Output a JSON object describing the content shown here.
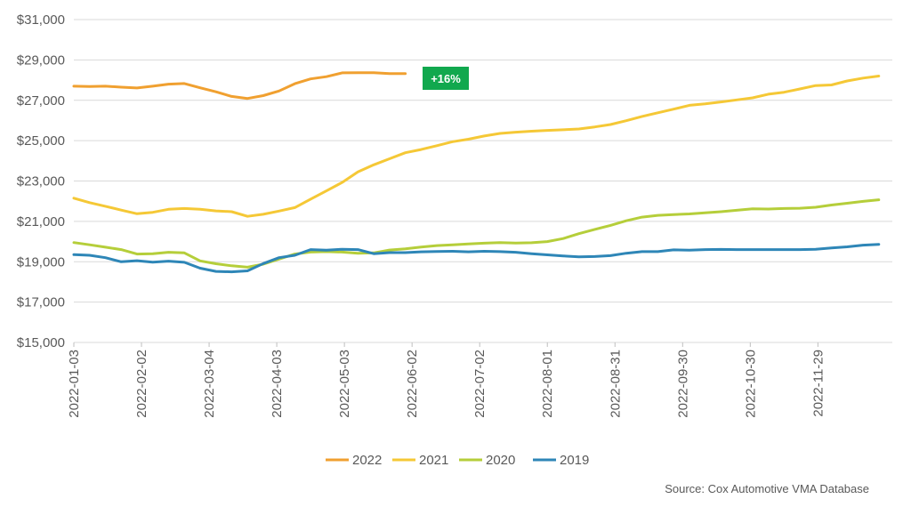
{
  "chart_data": {
    "type": "line",
    "ylim": [
      15000,
      31000
    ],
    "y_ticks": [
      {
        "value": 31000,
        "label": "$31,000"
      },
      {
        "value": 29000,
        "label": "$29,000"
      },
      {
        "value": 27000,
        "label": "$27,000"
      },
      {
        "value": 25000,
        "label": "$25,000"
      },
      {
        "value": 23000,
        "label": "$23,000"
      },
      {
        "value": 21000,
        "label": "$21,000"
      },
      {
        "value": 19000,
        "label": "$19,000"
      },
      {
        "value": 17000,
        "label": "$17,000"
      },
      {
        "value": 15000,
        "label": "$15,000"
      }
    ],
    "x_ticks": [
      "2022-01-03",
      "2022-02-02",
      "2022-03-04",
      "2022-04-03",
      "2022-05-03",
      "2022-06-02",
      "2022-07-02",
      "2022-08-01",
      "2022-08-31",
      "2022-09-30",
      "2022-10-30",
      "2022-11-29"
    ],
    "x_range": [
      "2022-01-03",
      "2023-01-01"
    ],
    "grid": "horizontal",
    "legend_position": "bottom",
    "series": [
      {
        "name": "2022",
        "color": "#F0A030",
        "points": [
          [
            "2022-01-03",
            27700
          ],
          [
            "2022-01-10",
            27680
          ],
          [
            "2022-01-17",
            27700
          ],
          [
            "2022-01-24",
            27650
          ],
          [
            "2022-01-31",
            27610
          ],
          [
            "2022-02-07",
            27700
          ],
          [
            "2022-02-14",
            27800
          ],
          [
            "2022-02-21",
            27830
          ],
          [
            "2022-02-28",
            27620
          ],
          [
            "2022-03-07",
            27420
          ],
          [
            "2022-03-14",
            27190
          ],
          [
            "2022-03-21",
            27090
          ],
          [
            "2022-03-28",
            27230
          ],
          [
            "2022-04-04",
            27460
          ],
          [
            "2022-04-11",
            27820
          ],
          [
            "2022-04-18",
            28060
          ],
          [
            "2022-04-25",
            28170
          ],
          [
            "2022-05-02",
            28360
          ],
          [
            "2022-05-09",
            28370
          ],
          [
            "2022-05-16",
            28370
          ],
          [
            "2022-05-23",
            28320
          ],
          [
            "2022-05-30",
            28320
          ]
        ]
      },
      {
        "name": "2021",
        "color": "#F5C836",
        "points": [
          [
            "2022-01-03",
            22150
          ],
          [
            "2022-01-10",
            21930
          ],
          [
            "2022-01-17",
            21750
          ],
          [
            "2022-01-24",
            21560
          ],
          [
            "2022-01-31",
            21380
          ],
          [
            "2022-02-07",
            21450
          ],
          [
            "2022-02-14",
            21600
          ],
          [
            "2022-02-21",
            21640
          ],
          [
            "2022-02-28",
            21600
          ],
          [
            "2022-03-07",
            21520
          ],
          [
            "2022-03-14",
            21480
          ],
          [
            "2022-03-21",
            21250
          ],
          [
            "2022-03-28",
            21350
          ],
          [
            "2022-04-04",
            21510
          ],
          [
            "2022-04-11",
            21680
          ],
          [
            "2022-04-18",
            22100
          ],
          [
            "2022-04-25",
            22510
          ],
          [
            "2022-05-02",
            22930
          ],
          [
            "2022-05-09",
            23450
          ],
          [
            "2022-05-16",
            23800
          ],
          [
            "2022-05-23",
            24100
          ],
          [
            "2022-05-30",
            24400
          ],
          [
            "2022-06-06",
            24560
          ],
          [
            "2022-06-13",
            24750
          ],
          [
            "2022-06-20",
            24950
          ],
          [
            "2022-06-27",
            25070
          ],
          [
            "2022-07-04",
            25230
          ],
          [
            "2022-07-11",
            25360
          ],
          [
            "2022-07-18",
            25420
          ],
          [
            "2022-07-25",
            25470
          ],
          [
            "2022-08-01",
            25510
          ],
          [
            "2022-08-08",
            25540
          ],
          [
            "2022-08-15",
            25580
          ],
          [
            "2022-08-22",
            25680
          ],
          [
            "2022-08-29",
            25800
          ],
          [
            "2022-09-05",
            25990
          ],
          [
            "2022-09-12",
            26200
          ],
          [
            "2022-09-19",
            26380
          ],
          [
            "2022-09-26",
            26560
          ],
          [
            "2022-10-03",
            26750
          ],
          [
            "2022-10-10",
            26820
          ],
          [
            "2022-10-17",
            26920
          ],
          [
            "2022-10-24",
            27020
          ],
          [
            "2022-10-31",
            27120
          ],
          [
            "2022-11-07",
            27300
          ],
          [
            "2022-11-14",
            27400
          ],
          [
            "2022-11-21",
            27560
          ],
          [
            "2022-11-28",
            27730
          ],
          [
            "2022-12-05",
            27760
          ],
          [
            "2022-12-12",
            27960
          ],
          [
            "2022-12-19",
            28100
          ],
          [
            "2022-12-26",
            28200
          ]
        ]
      },
      {
        "name": "2020",
        "color": "#B5CE3A",
        "points": [
          [
            "2022-01-03",
            19950
          ],
          [
            "2022-01-10",
            19840
          ],
          [
            "2022-01-17",
            19720
          ],
          [
            "2022-01-24",
            19600
          ],
          [
            "2022-01-31",
            19380
          ],
          [
            "2022-02-07",
            19400
          ],
          [
            "2022-02-14",
            19470
          ],
          [
            "2022-02-21",
            19440
          ],
          [
            "2022-02-28",
            19040
          ],
          [
            "2022-03-07",
            18900
          ],
          [
            "2022-03-14",
            18800
          ],
          [
            "2022-03-21",
            18730
          ],
          [
            "2022-03-28",
            18880
          ],
          [
            "2022-04-04",
            19130
          ],
          [
            "2022-04-11",
            19380
          ],
          [
            "2022-04-18",
            19480
          ],
          [
            "2022-04-25",
            19500
          ],
          [
            "2022-05-02",
            19480
          ],
          [
            "2022-05-09",
            19420
          ],
          [
            "2022-05-16",
            19440
          ],
          [
            "2022-05-23",
            19580
          ],
          [
            "2022-05-30",
            19640
          ],
          [
            "2022-06-06",
            19730
          ],
          [
            "2022-06-13",
            19800
          ],
          [
            "2022-06-20",
            19840
          ],
          [
            "2022-06-27",
            19880
          ],
          [
            "2022-07-04",
            19920
          ],
          [
            "2022-07-11",
            19950
          ],
          [
            "2022-07-18",
            19930
          ],
          [
            "2022-07-25",
            19940
          ],
          [
            "2022-08-01",
            20000
          ],
          [
            "2022-08-08",
            20150
          ],
          [
            "2022-08-15",
            20390
          ],
          [
            "2022-08-22",
            20600
          ],
          [
            "2022-08-29",
            20800
          ],
          [
            "2022-09-05",
            21030
          ],
          [
            "2022-09-12",
            21210
          ],
          [
            "2022-09-19",
            21300
          ],
          [
            "2022-09-26",
            21340
          ],
          [
            "2022-10-03",
            21370
          ],
          [
            "2022-10-10",
            21420
          ],
          [
            "2022-10-17",
            21480
          ],
          [
            "2022-10-24",
            21550
          ],
          [
            "2022-10-31",
            21620
          ],
          [
            "2022-11-07",
            21610
          ],
          [
            "2022-11-14",
            21640
          ],
          [
            "2022-11-21",
            21650
          ],
          [
            "2022-11-28",
            21700
          ],
          [
            "2022-12-05",
            21810
          ],
          [
            "2022-12-12",
            21900
          ],
          [
            "2022-12-19",
            21990
          ],
          [
            "2022-12-26",
            22070
          ]
        ]
      },
      {
        "name": "2019",
        "color": "#2E86B7",
        "points": [
          [
            "2022-01-03",
            19350
          ],
          [
            "2022-01-10",
            19320
          ],
          [
            "2022-01-17",
            19200
          ],
          [
            "2022-01-24",
            19000
          ],
          [
            "2022-01-31",
            19050
          ],
          [
            "2022-02-07",
            18980
          ],
          [
            "2022-02-14",
            19030
          ],
          [
            "2022-02-21",
            18970
          ],
          [
            "2022-02-28",
            18680
          ],
          [
            "2022-03-07",
            18520
          ],
          [
            "2022-03-14",
            18500
          ],
          [
            "2022-03-21",
            18550
          ],
          [
            "2022-03-28",
            18910
          ],
          [
            "2022-04-04",
            19200
          ],
          [
            "2022-04-11",
            19320
          ],
          [
            "2022-04-18",
            19600
          ],
          [
            "2022-04-25",
            19570
          ],
          [
            "2022-05-02",
            19620
          ],
          [
            "2022-05-09",
            19600
          ],
          [
            "2022-05-16",
            19400
          ],
          [
            "2022-05-23",
            19450
          ],
          [
            "2022-05-30",
            19450
          ],
          [
            "2022-06-06",
            19490
          ],
          [
            "2022-06-13",
            19510
          ],
          [
            "2022-06-20",
            19520
          ],
          [
            "2022-06-27",
            19490
          ],
          [
            "2022-07-04",
            19520
          ],
          [
            "2022-07-11",
            19500
          ],
          [
            "2022-07-18",
            19470
          ],
          [
            "2022-07-25",
            19400
          ],
          [
            "2022-08-01",
            19340
          ],
          [
            "2022-08-08",
            19290
          ],
          [
            "2022-08-15",
            19240
          ],
          [
            "2022-08-22",
            19260
          ],
          [
            "2022-08-29",
            19300
          ],
          [
            "2022-09-05",
            19420
          ],
          [
            "2022-09-12",
            19500
          ],
          [
            "2022-09-19",
            19500
          ],
          [
            "2022-09-26",
            19590
          ],
          [
            "2022-10-03",
            19570
          ],
          [
            "2022-10-10",
            19600
          ],
          [
            "2022-10-17",
            19610
          ],
          [
            "2022-10-24",
            19600
          ],
          [
            "2022-10-31",
            19600
          ],
          [
            "2022-11-07",
            19600
          ],
          [
            "2022-11-14",
            19600
          ],
          [
            "2022-11-21",
            19600
          ],
          [
            "2022-11-28",
            19620
          ],
          [
            "2022-12-05",
            19680
          ],
          [
            "2022-12-12",
            19740
          ],
          [
            "2022-12-19",
            19820
          ],
          [
            "2022-12-26",
            19860
          ]
        ]
      }
    ],
    "annotations": [
      {
        "text": "+16%",
        "background": "#11A84E"
      }
    ]
  },
  "source": "Source:  Cox Automotive VMA Database"
}
